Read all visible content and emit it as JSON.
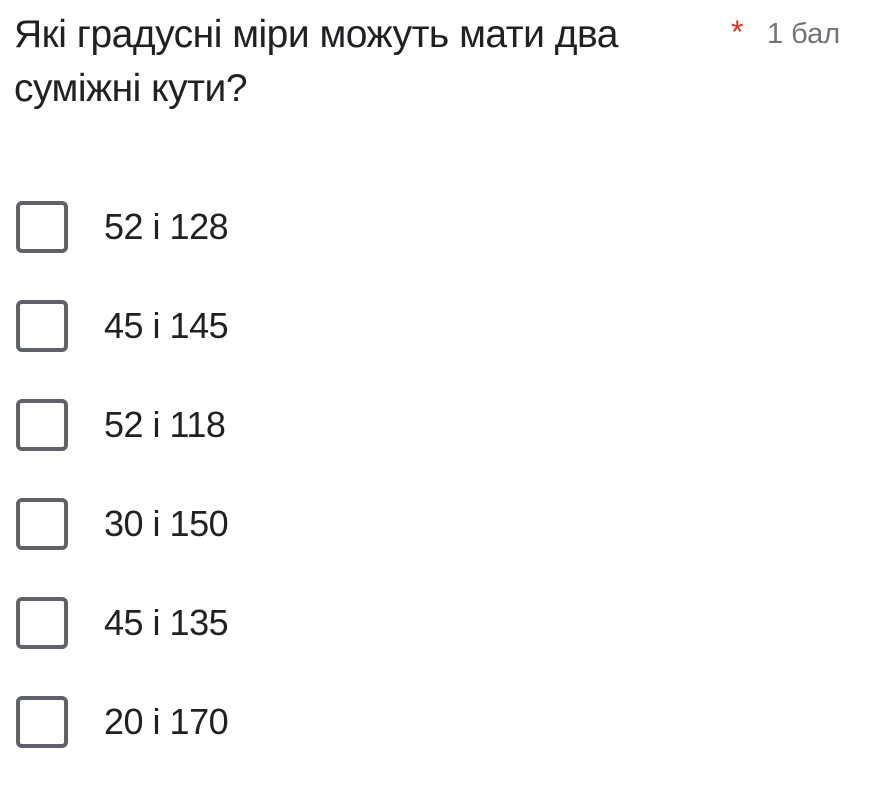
{
  "question": {
    "title": "Які градусні міри можуть мати два суміжні кути?",
    "required_marker": "*",
    "points": "1 бал",
    "required_color": "#d93025"
  },
  "options": [
    {
      "label": "52 і 128",
      "checked": false
    },
    {
      "label": "45 і 145",
      "checked": false
    },
    {
      "label": "52 і 118",
      "checked": false
    },
    {
      "label": "30 і 150",
      "checked": false
    },
    {
      "label": "45 і 135",
      "checked": false
    },
    {
      "label": "20 і 170",
      "checked": false
    }
  ]
}
